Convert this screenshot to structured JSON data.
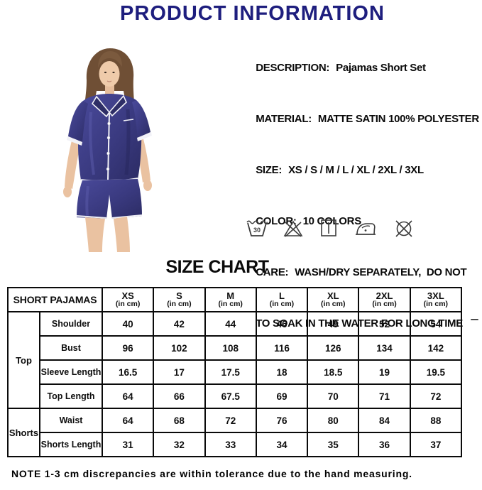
{
  "header": {
    "title": "PRODUCT INFORMATION"
  },
  "details": {
    "lines": [
      {
        "label": "DESCRIPTION:",
        "value": "Pajamas Short Set"
      },
      {
        "label": "MATERIAL:",
        "value": "MATTE SATIN 100% POLYESTER"
      },
      {
        "label": "SIZE:",
        "value": "XS / S / M / L / XL / 2XL / 3XL"
      },
      {
        "label": "COLOR:",
        "value": "10 COLORS"
      },
      {
        "label": "CARE:",
        "value": "WASH/DRY SEPARATELY,  DO NOT"
      },
      {
        "label": "",
        "value": "TO SOAK IN THE WATER FOR LONG TIME"
      }
    ]
  },
  "care_icons": [
    {
      "name": "machine-wash-30-icon",
      "label": "30"
    },
    {
      "name": "do-not-bleach-icon"
    },
    {
      "name": "drip-dry-icon"
    },
    {
      "name": "iron-icon"
    },
    {
      "name": "do-not-dry-clean-icon"
    }
  ],
  "size_chart": {
    "heading": "SIZE CHART",
    "table": {
      "corner_header": "SHORT PAJAMAS",
      "unit_label": "(in cm)",
      "size_headers": [
        "XS",
        "S",
        "M",
        "L",
        "XL",
        "2XL",
        "3XL"
      ],
      "groups": [
        {
          "name": "Top",
          "rows": [
            {
              "label": "Shoulder",
              "values": [
                "40",
                "42",
                "44",
                "46",
                "49",
                "52",
                "54"
              ]
            },
            {
              "label": "Bust",
              "values": [
                "96",
                "102",
                "108",
                "116",
                "126",
                "134",
                "142"
              ]
            },
            {
              "label": "Sleeve Length",
              "values": [
                "16.5",
                "17",
                "17.5",
                "18",
                "18.5",
                "19",
                "19.5"
              ]
            },
            {
              "label": "Top Length",
              "values": [
                "64",
                "66",
                "67.5",
                "69",
                "70",
                "71",
                "72"
              ]
            }
          ]
        },
        {
          "name": "Shorts",
          "rows": [
            {
              "label": "Waist",
              "values": [
                "64",
                "68",
                "72",
                "76",
                "80",
                "84",
                "88"
              ]
            },
            {
              "label": "Shorts Length",
              "values": [
                "31",
                "32",
                "33",
                "34",
                "35",
                "36",
                "37"
              ]
            }
          ]
        }
      ]
    }
  },
  "note": "NOTE 1-3 cm discrepancies are within tolerance due to the hand measuring.",
  "colors": {
    "title_navy": "#1e1e7e",
    "pajama_navy": "#3a3a80",
    "table_border": "#0a0a0a"
  }
}
